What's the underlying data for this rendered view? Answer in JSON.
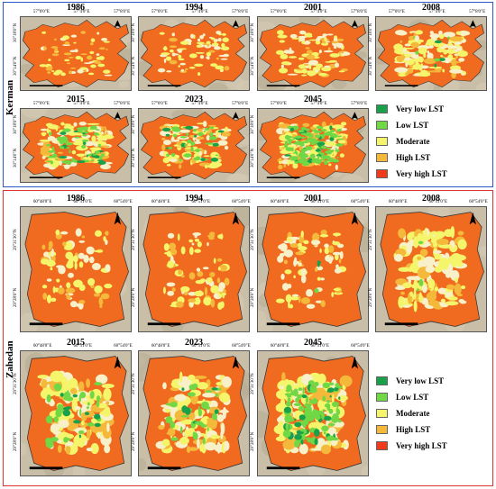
{
  "colors": {
    "very_low": "#19a04a",
    "low": "#6fd844",
    "moderate": "#f4f56a",
    "high": "#f4b93a",
    "very_high": "#f03a1a",
    "kerman_frame": "#2b57c9",
    "zahedan_frame": "#e0322d"
  },
  "legend": [
    {
      "label": "Very low LST",
      "color_key": "very_low"
    },
    {
      "label": "Low LST",
      "color_key": "low"
    },
    {
      "label": "Moderate",
      "color_key": "moderate"
    },
    {
      "label": "High LST",
      "color_key": "high"
    },
    {
      "label": "Very high LST",
      "color_key": "very_high"
    }
  ],
  "kerman": {
    "label": "Kerman",
    "years": [
      "1986",
      "1994",
      "2001",
      "2008",
      "2015",
      "2023",
      "2045"
    ],
    "lon_ticks": [
      "57°0'0\"E",
      "57°4'0\"E",
      "57°8'0\"E"
    ],
    "lat_ticks": [
      "30°18'0\"N",
      "30°14'0\"N"
    ]
  },
  "zahedan": {
    "label": "Zahedan",
    "years": [
      "1986",
      "1994",
      "2001",
      "2008",
      "2015",
      "2023",
      "2045"
    ],
    "lon_ticks": [
      "60°48'0\"E",
      "60°51'0\"E",
      "60°54'0\"E"
    ],
    "lat_ticks": [
      "29°31'30\"N",
      "29°28'0\"N"
    ]
  }
}
